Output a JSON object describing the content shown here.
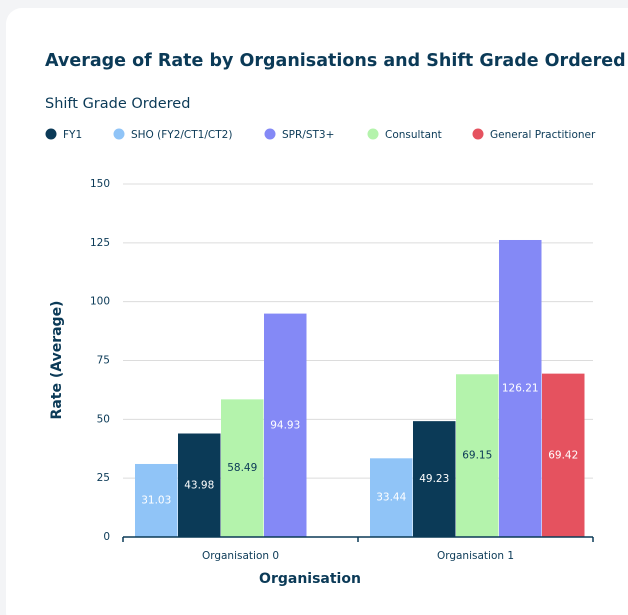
{
  "chart_data": {
    "type": "bar",
    "title": "Average of Rate by Organisations and Shift Grade Ordered",
    "legend_title": "Shift Grade Ordered",
    "x_label": "Organisation",
    "y_label": "Rate (Average)",
    "categories": [
      "Organisation 0",
      "Organisation 1"
    ],
    "series": [
      {
        "name": "FY1",
        "color": "#0b3a57",
        "values": [
          43.98,
          49.23
        ]
      },
      {
        "name": "SHO (FY2/CT1/CT2)",
        "color": "#90c4f7",
        "values": [
          31.03,
          33.44
        ]
      },
      {
        "name": "SPR/ST3+",
        "color": "#8489f6",
        "values": [
          94.93,
          126.21
        ]
      },
      {
        "name": "Consultant",
        "color": "#b4f3ac",
        "values": [
          58.49,
          69.15
        ]
      },
      {
        "name": "General Practitioner",
        "color": "#e5525f",
        "values": [
          null,
          69.42
        ]
      }
    ],
    "ylim": [
      0,
      150
    ],
    "yticks": [
      0,
      25,
      50,
      75,
      100,
      125,
      150
    ],
    "grid": true,
    "legend": "top"
  }
}
